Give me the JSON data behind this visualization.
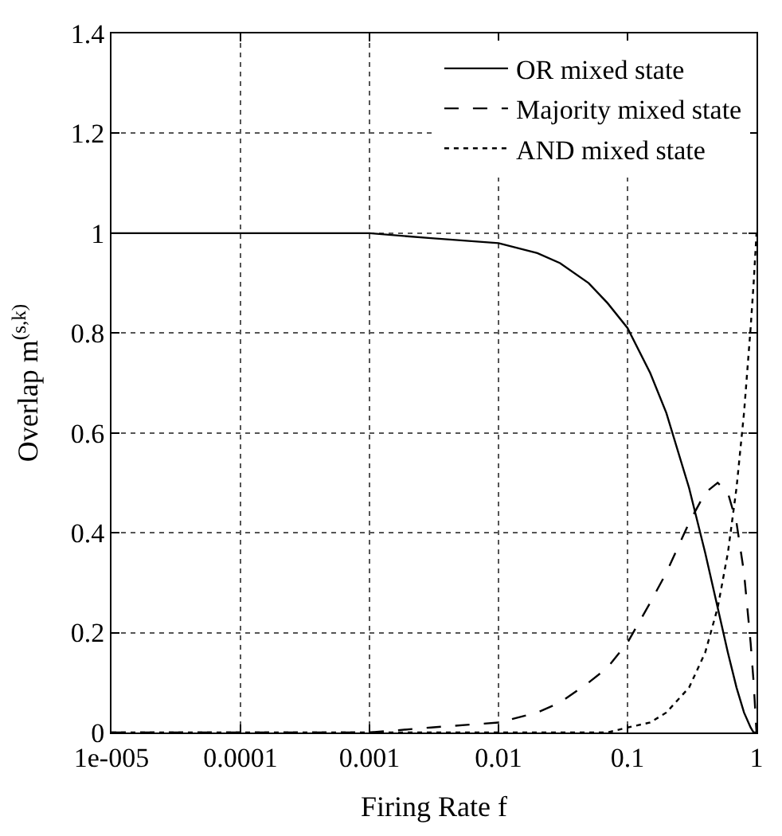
{
  "chart_data": {
    "type": "line",
    "xlabel": "Firing Rate f",
    "ylabel": "Overlap m$^{(s,k)}$",
    "x": [
      1e-05,
      0.0001,
      0.001,
      0.003,
      0.01,
      0.02,
      0.03,
      0.05,
      0.07,
      0.1,
      0.15,
      0.2,
      0.3,
      0.4,
      0.5,
      0.6,
      0.7,
      0.8,
      0.9,
      0.95,
      1
    ],
    "series": [
      {
        "name": "OR mixed state",
        "color": "#000000",
        "line_style": "solid",
        "values": [
          1,
          1,
          1,
          0.99,
          0.98,
          0.96,
          0.94,
          0.9,
          0.86,
          0.81,
          0.72,
          0.64,
          0.49,
          0.36,
          0.25,
          0.16,
          0.09,
          0.04,
          0.01,
          0,
          0
        ]
      },
      {
        "name": "Majority mixed state",
        "color": "#000000",
        "line_style": "dashed",
        "values": [
          0,
          0,
          0,
          0.01,
          0.02,
          0.04,
          0.06,
          0.1,
          0.13,
          0.18,
          0.26,
          0.32,
          0.42,
          0.48,
          0.5,
          0.48,
          0.42,
          0.32,
          0.18,
          0.1,
          0
        ]
      },
      {
        "name": "AND mixed state",
        "color": "#000000",
        "line_style": "dotted",
        "values": [
          0,
          0,
          0,
          0,
          0,
          0,
          0,
          0,
          0,
          0.01,
          0.02,
          0.04,
          0.09,
          0.16,
          0.25,
          0.36,
          0.49,
          0.64,
          0.81,
          0.9,
          1
        ]
      }
    ],
    "log": "x",
    "xlim": [
      1e-05,
      1
    ],
    "xticks": [
      {
        "value": 1e-05,
        "label": "1e-005"
      },
      0.0001,
      0.001,
      0.01,
      0.1,
      1
    ],
    "ylim": [
      0,
      1.4
    ],
    "yticks": [
      0,
      0.2,
      0.4,
      0.6,
      0.8,
      1,
      1.2,
      1.4
    ],
    "grid": true,
    "legend": "top right",
    "marker": "none"
  }
}
